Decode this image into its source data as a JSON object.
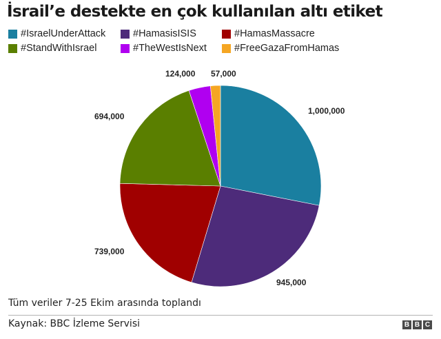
{
  "title": "İsrail’e destekte en çok kullanılan altı etiket",
  "legend": [
    {
      "label": "#IsraelUnderAttack",
      "color": "#1a7fa0"
    },
    {
      "label": "#HamasisISIS",
      "color": "#4d2b7a"
    },
    {
      "label": "#HamasMassacre",
      "color": "#a00000"
    },
    {
      "label": "#StandWithIsrael",
      "color": "#5a7f00"
    },
    {
      "label": "#TheWestIsNext",
      "color": "#b000f0"
    },
    {
      "label": "#FreeGazaFromHamas",
      "color": "#f5a623"
    }
  ],
  "chart_data": {
    "type": "pie",
    "title": "İsrail’e destekte en çok kullanılan altı etiket",
    "categories": [
      "#IsraelUnderAttack",
      "#HamasisISIS",
      "#HamasMassacre",
      "#StandWithIsrael",
      "#TheWestIsNext",
      "#FreeGazaFromHamas"
    ],
    "values": [
      1000000,
      945000,
      739000,
      694000,
      124000,
      57000
    ],
    "value_labels": [
      "1,000,000",
      "945,000",
      "739,000",
      "694,000",
      "124,000",
      "57,000"
    ],
    "colors": [
      "#1a7fa0",
      "#4d2b7a",
      "#a00000",
      "#5a7f00",
      "#b000f0",
      "#f5a623"
    ],
    "start_angle": "12 o'clock, clockwise",
    "legend_position": "top"
  },
  "footer": {
    "note": "Tüm veriler 7-25 Ekim  arasında toplandı",
    "source": "Kaynak: BBC İzleme Servisi",
    "logo": [
      "B",
      "B",
      "C"
    ]
  }
}
